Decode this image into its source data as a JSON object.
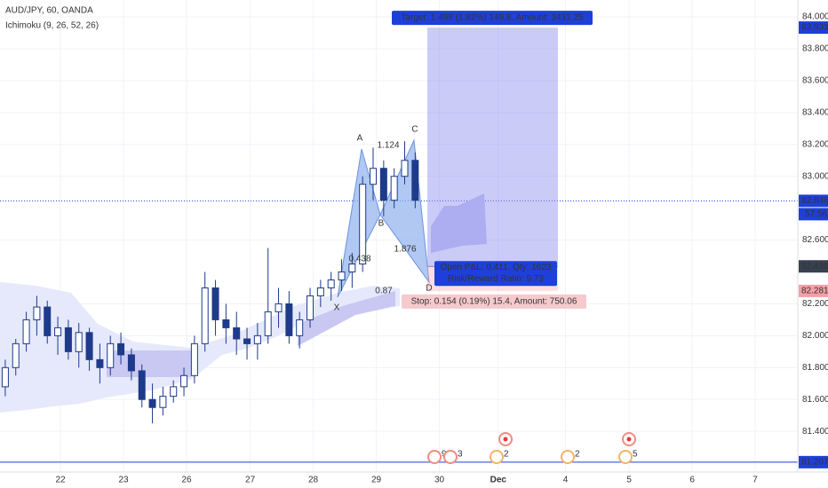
{
  "chart_data": {
    "type": "candlestick",
    "title": "AUD/JPY, 60, OANDA",
    "indicator": "Ichimoku (9, 26, 52, 26)",
    "candles": [
      [
        81.68,
        81.85,
        81.62,
        81.8
      ],
      [
        81.8,
        81.98,
        81.75,
        81.95
      ],
      [
        81.95,
        82.15,
        81.9,
        82.1
      ],
      [
        82.1,
        82.25,
        82.0,
        82.18
      ],
      [
        82.18,
        82.22,
        81.95,
        82.0
      ],
      [
        82.0,
        82.12,
        81.88,
        82.05
      ],
      [
        82.05,
        82.1,
        81.85,
        81.9
      ],
      [
        81.9,
        82.08,
        81.8,
        82.02
      ],
      [
        82.02,
        82.05,
        81.78,
        81.85
      ],
      [
        81.85,
        81.95,
        81.7,
        81.8
      ],
      [
        81.8,
        82.0,
        81.75,
        81.95
      ],
      [
        81.95,
        82.02,
        81.82,
        81.88
      ],
      [
        81.88,
        81.92,
        81.72,
        81.78
      ],
      [
        81.78,
        81.82,
        81.55,
        81.6
      ],
      [
        81.6,
        81.7,
        81.45,
        81.55
      ],
      [
        81.55,
        81.68,
        81.5,
        81.62
      ],
      [
        81.62,
        81.72,
        81.58,
        81.68
      ],
      [
        81.68,
        81.8,
        81.62,
        81.75
      ],
      [
        81.75,
        82.0,
        81.7,
        81.95
      ],
      [
        81.95,
        82.4,
        81.9,
        82.3
      ],
      [
        82.3,
        82.35,
        82.0,
        82.1
      ],
      [
        82.1,
        82.2,
        81.95,
        82.05
      ],
      [
        82.05,
        82.15,
        81.88,
        81.98
      ],
      [
        81.98,
        82.05,
        81.85,
        81.95
      ],
      [
        81.95,
        82.08,
        81.85,
        82.0
      ],
      [
        82.0,
        82.55,
        81.95,
        82.15
      ],
      [
        82.15,
        82.3,
        82.05,
        82.2
      ],
      [
        82.2,
        82.28,
        81.95,
        82.0
      ],
      [
        82.0,
        82.15,
        81.92,
        82.1
      ],
      [
        82.1,
        82.3,
        82.05,
        82.25
      ],
      [
        82.25,
        82.35,
        82.18,
        82.3
      ],
      [
        82.3,
        82.4,
        82.22,
        82.35
      ],
      [
        82.35,
        82.48,
        82.28,
        82.4
      ],
      [
        82.4,
        82.52,
        82.3,
        82.45
      ],
      [
        82.45,
        83.0,
        82.4,
        82.95
      ],
      [
        82.95,
        83.18,
        82.85,
        83.05
      ],
      [
        83.05,
        83.1,
        82.75,
        82.85
      ],
      [
        82.85,
        83.05,
        82.8,
        83.0
      ],
      [
        83.0,
        83.22,
        82.95,
        83.1
      ],
      [
        83.1,
        83.15,
        82.8,
        82.85
      ]
    ],
    "up_color": "#1e3a8a",
    "down_color": "#1e3a8a",
    "xlim": [
      -0.5,
      75.4
    ],
    "xticks": [
      {
        "value": 5.25,
        "label": "22"
      },
      {
        "value": 11.25,
        "label": "23"
      },
      {
        "value": 17.25,
        "label": "26"
      },
      {
        "value": 23.3,
        "label": "27"
      },
      {
        "value": 29.3,
        "label": "28"
      },
      {
        "value": 35.3,
        "label": "29"
      },
      {
        "value": 41.3,
        "label": "30"
      },
      {
        "value": 46.9,
        "label": "Dec"
      },
      {
        "value": 53.3,
        "label": "4"
      },
      {
        "value": 59.35,
        "label": "5"
      },
      {
        "value": 65.35,
        "label": "6"
      },
      {
        "value": 71.35,
        "label": "7"
      }
    ],
    "ylim": [
      81.145,
      84.106
    ],
    "yticks": [
      {
        "value": 81.4,
        "label": "81.400"
      },
      {
        "value": 81.6,
        "label": "81.600"
      },
      {
        "value": 81.8,
        "label": "81.800"
      },
      {
        "value": 82,
        "label": "82.000"
      },
      {
        "value": 82.2,
        "label": "82.200"
      },
      {
        "value": 82.6,
        "label": "82.600"
      },
      {
        "value": 83,
        "label": "83.000"
      },
      {
        "value": 83.2,
        "label": "83.200"
      },
      {
        "value": 83.4,
        "label": "83.400"
      },
      {
        "value": 83.6,
        "label": "83.600"
      },
      {
        "value": 83.8,
        "label": "83.800"
      },
      {
        "value": 84,
        "label": "84.000"
      }
    ],
    "price_labels": [
      {
        "price": 83.933,
        "color": "#1e40d8"
      },
      {
        "price": 82.846,
        "color": "#1e40d8"
      },
      {
        "price": 82.435,
        "color": "#374151"
      },
      {
        "price": 82.281,
        "color": "#f4a0a8"
      },
      {
        "price": 81.207,
        "color": "#1e40d8"
      }
    ],
    "countdown": "57:56",
    "position": {
      "target": 83.933,
      "entry": 82.435,
      "stop": 82.281,
      "target_label": "Target: 1.498 (1.82%) 149.8, Amount: 3431.25",
      "pnl_label": "Open P&L: 0.411, Qty: 1623",
      "rr_label": "Risk/Reward Ratio: 9.73",
      "stop_label": "Stop: 0.154 (0.19%) 15.4, Amount: 750.06"
    },
    "pattern_labels": [
      "X",
      "A",
      "B",
      "C",
      "D",
      "0.438",
      "1.124",
      "1.876",
      "0.87"
    ],
    "events": [
      "9",
      "3",
      "2",
      "2",
      "5"
    ]
  }
}
